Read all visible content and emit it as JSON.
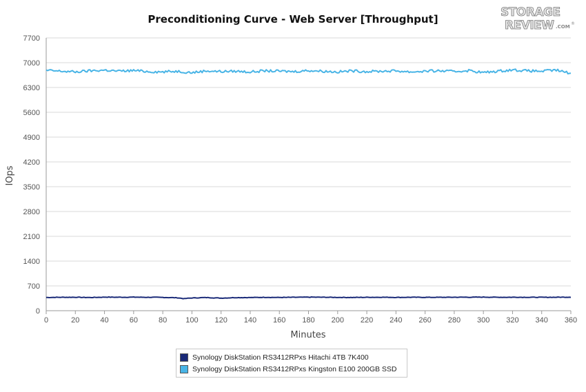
{
  "chart_data": {
    "type": "line",
    "title": "Preconditioning Curve - Web Server [Throughput]",
    "xlabel": "Minutes",
    "ylabel": "IOps",
    "xlim": [
      0,
      360
    ],
    "ylim": [
      0,
      7700
    ],
    "xticks": [
      0,
      20,
      40,
      60,
      80,
      100,
      120,
      140,
      160,
      180,
      200,
      220,
      240,
      260,
      280,
      300,
      320,
      340,
      360
    ],
    "yticks": [
      0,
      700,
      1400,
      2100,
      2800,
      3500,
      4200,
      4900,
      5600,
      6300,
      7000,
      7700
    ],
    "grid": "horizontal",
    "legend_position": "bottom",
    "series": [
      {
        "name": "Synology DiskStation RS3412RPxs Hitachi 4TB 7K400",
        "color": "#1a2a78",
        "x": [
          0,
          10,
          20,
          30,
          40,
          50,
          60,
          70,
          80,
          85,
          90,
          95,
          100,
          110,
          120,
          130,
          140,
          150,
          160,
          170,
          180,
          190,
          200,
          210,
          220,
          230,
          240,
          250,
          260,
          270,
          280,
          290,
          300,
          310,
          320,
          330,
          340,
          350,
          360
        ],
        "values": [
          375,
          378,
          380,
          372,
          383,
          380,
          382,
          378,
          376,
          370,
          364,
          340,
          360,
          372,
          355,
          370,
          372,
          378,
          374,
          378,
          382,
          380,
          376,
          374,
          378,
          380,
          376,
          379,
          377,
          378,
          380,
          381,
          383,
          379,
          380,
          379,
          378,
          380,
          384
        ]
      },
      {
        "name": "Synology DiskStation RS3412RPxs Kingston E100 200GB SSD",
        "color": "#48b4e6",
        "x": [
          0,
          10,
          20,
          30,
          40,
          50,
          60,
          70,
          80,
          90,
          100,
          110,
          120,
          130,
          140,
          150,
          160,
          170,
          180,
          190,
          200,
          210,
          220,
          230,
          240,
          250,
          260,
          270,
          280,
          290,
          300,
          310,
          320,
          330,
          340,
          350,
          360
        ],
        "values": [
          6780,
          6760,
          6740,
          6770,
          6790,
          6760,
          6780,
          6750,
          6740,
          6760,
          6720,
          6770,
          6750,
          6760,
          6740,
          6770,
          6760,
          6750,
          6780,
          6760,
          6740,
          6770,
          6750,
          6760,
          6770,
          6740,
          6760,
          6770,
          6750,
          6780,
          6720,
          6760,
          6800,
          6770,
          6760,
          6790,
          6700
        ]
      }
    ]
  },
  "logo": {
    "line1": "STORAGE",
    "line2": "REVIEW",
    "suffix": ".COM",
    "mark": "®"
  }
}
